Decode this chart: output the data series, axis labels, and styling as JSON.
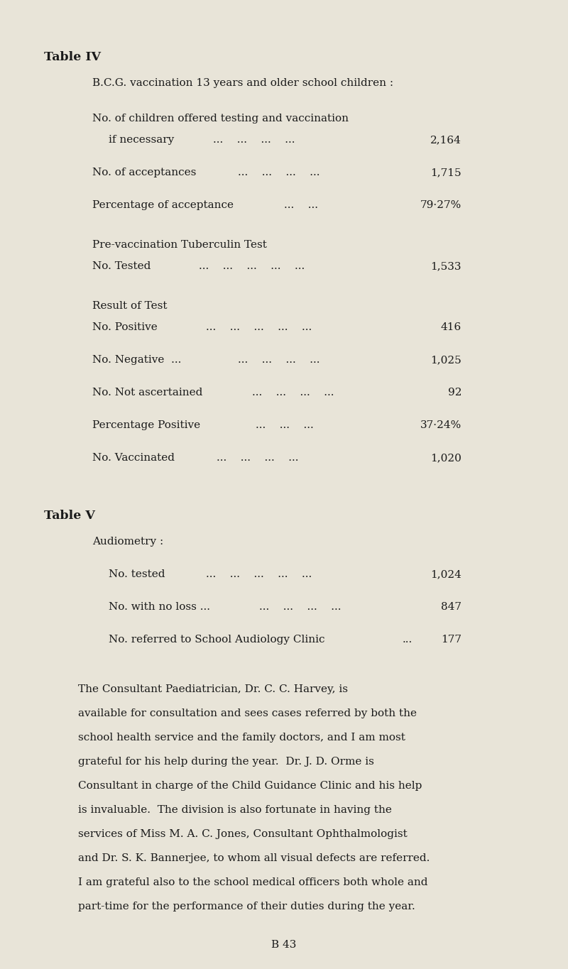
{
  "bg_color": "#e8e4d8",
  "text_color": "#1a1a1a",
  "page_width": 8.0,
  "page_height": 13.65,
  "table4_title": "Table IV",
  "table4_subtitle": "B.C.G. vaccination 13 years and older school children :",
  "table5_title": "Table V",
  "table5_subtitle": "Audiometry :",
  "footer": "B 43",
  "title_fontsize": 12.5,
  "body_fontsize": 11.0,
  "para_fontsize": 11.0,
  "para_lines": [
    "The Consultant Paediatrician, Dr. C. C. Harvey, is",
    "available for consultation and sees cases referred by both the",
    "school health service and the family doctors, and I am most",
    "grateful for his help during the year.  Dr. J. D. Orme is",
    "Consultant in charge of the Child Guidance Clinic and his help",
    "is invaluable.  The division is also fortunate in having the",
    "services of Miss M. A. C. Jones, Consultant Ophthalmologist",
    "and Dr. S. K. Bannerjee, to whom all visual defects are referred.",
    "I am grateful also to the school medical officers both whole and",
    "part-time for the performance of their duties during the year."
  ]
}
